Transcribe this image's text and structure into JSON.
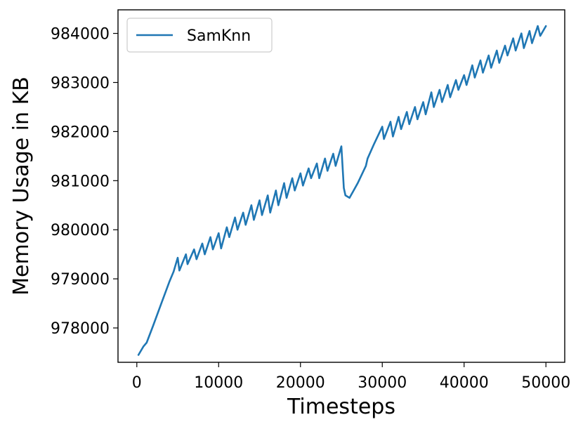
{
  "chart_data": {
    "type": "line",
    "xlabel": "Timesteps",
    "ylabel": "Memory Usage in KB",
    "xlim": [
      -2300,
      52300
    ],
    "ylim": [
      977300,
      984480
    ],
    "xticks": [
      0,
      10000,
      20000,
      30000,
      40000,
      50000
    ],
    "xtick_labels": [
      "0",
      "10000",
      "20000",
      "30000",
      "40000",
      "50000"
    ],
    "yticks": [
      978000,
      979000,
      980000,
      981000,
      982000,
      983000,
      984000
    ],
    "ytick_labels": [
      "978000",
      "979000",
      "980000",
      "981000",
      "982000",
      "983000",
      "984000"
    ],
    "grid": false,
    "legend_position": "top-left",
    "color": "#1f77b4",
    "series": [
      {
        "name": "SamKnn",
        "x": [
          200,
          800,
          1200,
          2000,
          3000,
          4000,
          4500,
          5000,
          5200,
          6000,
          6200,
          7000,
          7300,
          8000,
          8300,
          9000,
          9300,
          10000,
          10300,
          11000,
          11300,
          12000,
          12300,
          13000,
          13300,
          14000,
          14300,
          15000,
          15300,
          16000,
          16300,
          17000,
          17300,
          18000,
          18300,
          19000,
          19300,
          20000,
          20300,
          21000,
          21300,
          22000,
          22300,
          23000,
          23300,
          24000,
          24300,
          25000,
          25300,
          25500,
          26000,
          26500,
          27000,
          28000,
          28200,
          29000,
          30000,
          30200,
          31000,
          31300,
          32000,
          32300,
          33000,
          33300,
          34000,
          34300,
          35000,
          35300,
          36000,
          36300,
          37000,
          37300,
          38000,
          38300,
          39000,
          39300,
          40000,
          40300,
          41000,
          41300,
          42000,
          42300,
          43000,
          43300,
          44000,
          44300,
          45000,
          45300,
          46000,
          46300,
          47000,
          47300,
          48000,
          48300,
          49000,
          49300,
          50000
        ],
        "y": [
          977450,
          977620,
          977700,
          978050,
          978500,
          978950,
          979150,
          979430,
          979170,
          979500,
          979300,
          979600,
          979400,
          979720,
          979500,
          979850,
          979600,
          979930,
          979620,
          980050,
          979850,
          980250,
          980000,
          980350,
          980100,
          980500,
          980200,
          980600,
          980300,
          980700,
          980350,
          980800,
          980500,
          980950,
          980650,
          981050,
          980800,
          981150,
          980900,
          981250,
          981050,
          981350,
          981050,
          981450,
          981200,
          981550,
          981300,
          981700,
          980850,
          980700,
          980650,
          980800,
          980950,
          981300,
          981450,
          981750,
          982100,
          981850,
          982200,
          981900,
          982300,
          982050,
          982400,
          982150,
          982500,
          982250,
          982600,
          982350,
          982800,
          982500,
          982850,
          982600,
          982950,
          982700,
          983050,
          982850,
          983150,
          982950,
          983350,
          983100,
          983450,
          983200,
          983550,
          983300,
          983650,
          983400,
          983750,
          983550,
          983900,
          983650,
          984000,
          983700,
          984050,
          983800,
          984150,
          983950,
          984150
        ]
      }
    ]
  }
}
